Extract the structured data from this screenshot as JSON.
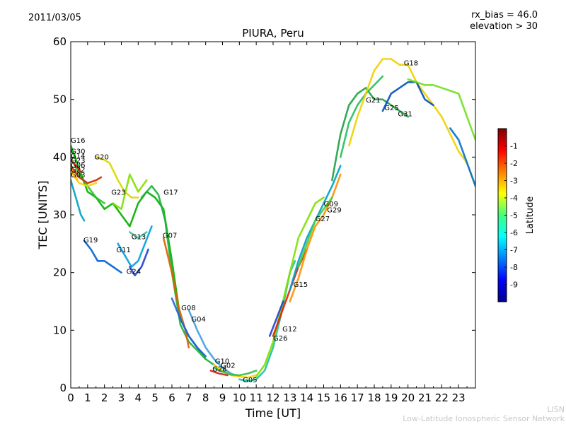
{
  "header": {
    "date": "2011/03/05",
    "rx_bias": "rx_bias = 46.0",
    "elevation": "elevation > 30",
    "title": "PIURA, Peru"
  },
  "footer": {
    "line1": "LISN",
    "line2": "Low-Latitude Ionospheric Sensor Network"
  },
  "chart_data": {
    "type": "scatter",
    "title": "PIURA, Peru",
    "xlabel": "Time [UT]",
    "ylabel": "TEC [UNITS]",
    "xlim": [
      0,
      24
    ],
    "ylim": [
      0,
      60
    ],
    "xticks": [
      "0",
      "1",
      "2",
      "3",
      "4",
      "5",
      "6",
      "7",
      "8",
      "9",
      "10",
      "11",
      "12",
      "13",
      "14",
      "15",
      "16",
      "17",
      "18",
      "19",
      "20",
      "21",
      "22",
      "23"
    ],
    "yticks": [
      "0",
      "10",
      "20",
      "30",
      "40",
      "50",
      "60"
    ],
    "colorbar": {
      "label": "Latitude",
      "range": [
        -10,
        0
      ],
      "ticks": [
        "-1",
        "-2",
        "-3",
        "-4",
        "-5",
        "-6",
        "-7",
        "-8",
        "-9"
      ]
    },
    "series": [
      {
        "name": "G16",
        "color": "#00b000",
        "points": [
          [
            0,
            42
          ],
          [
            0.5,
            38
          ],
          [
            1,
            34
          ],
          [
            1.5,
            33
          ],
          [
            2,
            31
          ],
          [
            2.5,
            32
          ],
          [
            3,
            30
          ],
          [
            3.5,
            28
          ],
          [
            4,
            32
          ],
          [
            4.5,
            34
          ],
          [
            5,
            33
          ],
          [
            5.5,
            31
          ],
          [
            6,
            22
          ],
          [
            6.5,
            12
          ],
          [
            7,
            9
          ],
          [
            7.5,
            7
          ],
          [
            8,
            5
          ]
        ]
      },
      {
        "name": "G30",
        "color": "#30c030",
        "points": [
          [
            0,
            40
          ],
          [
            0.5,
            37
          ],
          [
            1,
            35
          ],
          [
            1.5,
            33
          ],
          [
            2,
            32
          ]
        ]
      },
      {
        "name": "G14",
        "color": "#ff2020",
        "points": [
          [
            0,
            39.5
          ],
          [
            0.3,
            38.5
          ],
          [
            0.6,
            37.5
          ]
        ]
      },
      {
        "name": "G23",
        "color": "#c83000",
        "points": [
          [
            0,
            38.5
          ],
          [
            0.5,
            36.5
          ],
          [
            1,
            35.5
          ],
          [
            1.5,
            36
          ],
          [
            1.8,
            36.5
          ]
        ]
      },
      {
        "name": "G06",
        "color": "#ff9000",
        "points": [
          [
            0,
            38
          ],
          [
            0.4,
            36
          ]
        ]
      },
      {
        "name": "G22",
        "color": "#ffd000",
        "points": [
          [
            0,
            37.5
          ],
          [
            0.5,
            35.5
          ],
          [
            1,
            35
          ],
          [
            1.5,
            35.5
          ]
        ]
      },
      {
        "name": "G03",
        "color": "#00a0c8",
        "points": [
          [
            0,
            36
          ],
          [
            0.3,
            33
          ],
          [
            0.6,
            30
          ],
          [
            0.8,
            29
          ]
        ]
      },
      {
        "name": "G20",
        "color": "#d8d800",
        "points": [
          [
            1.5,
            40
          ],
          [
            2,
            39.5
          ],
          [
            2.3,
            39
          ],
          [
            2.8,
            36
          ],
          [
            3.2,
            34
          ],
          [
            3.6,
            33
          ],
          [
            4,
            33
          ]
        ]
      },
      {
        "name": "G23",
        "color": "#80e000",
        "points": [
          [
            2.5,
            32
          ],
          [
            3,
            31
          ],
          [
            3.5,
            37
          ],
          [
            4,
            34
          ],
          [
            4.5,
            36
          ]
        ]
      },
      {
        "name": "G17",
        "color": "#20b040",
        "points": [
          [
            4.2,
            33
          ],
          [
            4.8,
            35
          ],
          [
            5.2,
            33.5
          ],
          [
            5.6,
            29
          ],
          [
            6,
            20
          ],
          [
            6.5,
            11
          ],
          [
            7,
            8
          ],
          [
            7.5,
            6.5
          ],
          [
            8,
            5
          ],
          [
            8.5,
            4
          ]
        ]
      },
      {
        "name": "G19",
        "color": "#0060d0",
        "points": [
          [
            0.8,
            25.5
          ],
          [
            1.2,
            24
          ],
          [
            1.6,
            22
          ],
          [
            2,
            22
          ],
          [
            2.5,
            21
          ],
          [
            3,
            20
          ]
        ]
      },
      {
        "name": "G11",
        "color": "#00a0d8",
        "points": [
          [
            2.8,
            25
          ],
          [
            3.2,
            23
          ],
          [
            3.6,
            21
          ],
          [
            4,
            22
          ],
          [
            4.4,
            25
          ],
          [
            4.8,
            28
          ]
        ]
      },
      {
        "name": "G13",
        "color": "#40c0a0",
        "points": [
          [
            3.5,
            27
          ],
          [
            4,
            26
          ],
          [
            4.5,
            27
          ]
        ]
      },
      {
        "name": "G24",
        "color": "#2040d0",
        "points": [
          [
            3.5,
            21
          ],
          [
            3.8,
            19.5
          ],
          [
            4.2,
            21
          ],
          [
            4.6,
            24
          ]
        ]
      },
      {
        "name": "G07",
        "color": "#e06000",
        "points": [
          [
            5.5,
            26
          ],
          [
            6,
            20
          ],
          [
            6.4,
            14
          ],
          [
            6.8,
            10
          ],
          [
            7,
            7
          ]
        ]
      },
      {
        "name": "G08",
        "color": "#2060e0",
        "points": [
          [
            6,
            15.5
          ],
          [
            6.5,
            12
          ],
          [
            7,
            9
          ],
          [
            7.5,
            7
          ],
          [
            8,
            5.5
          ]
        ]
      },
      {
        "name": "G04",
        "color": "#40a0e0",
        "points": [
          [
            7,
            13.5
          ],
          [
            7.5,
            10
          ],
          [
            8,
            7
          ],
          [
            8.5,
            5
          ],
          [
            9,
            3.5
          ],
          [
            9.5,
            2.5
          ],
          [
            10,
            2
          ]
        ]
      },
      {
        "name": "G10",
        "color": "#ffd000",
        "points": [
          [
            8.5,
            4
          ],
          [
            9,
            3
          ],
          [
            9.5,
            2.2
          ],
          [
            10,
            2
          ],
          [
            10.5,
            1.8
          ],
          [
            11,
            2.2
          ]
        ]
      },
      {
        "name": "G02",
        "color": "#30c050",
        "points": [
          [
            8.5,
            3.5
          ],
          [
            9,
            2.8
          ],
          [
            9.5,
            2.3
          ],
          [
            10,
            2.2
          ],
          [
            10.5,
            2.5
          ],
          [
            11,
            3
          ]
        ]
      },
      {
        "name": "G28",
        "color": "#d02020",
        "points": [
          [
            8.3,
            3
          ],
          [
            8.8,
            2.5
          ],
          [
            9.3,
            2.2
          ]
        ]
      },
      {
        "name": "G05",
        "color": "#20c0a0",
        "points": [
          [
            10,
            1.5
          ],
          [
            10.5,
            1.2
          ],
          [
            11,
            1.5
          ],
          [
            11.5,
            3
          ],
          [
            12,
            7
          ],
          [
            12.5,
            13
          ],
          [
            13,
            20
          ],
          [
            13.3,
            22
          ]
        ]
      },
      {
        "name": "G15",
        "color": "#80e000",
        "points": [
          [
            11,
            2
          ],
          [
            11.5,
            4
          ],
          [
            12,
            8
          ],
          [
            12.5,
            14
          ],
          [
            13,
            20
          ],
          [
            13.5,
            26
          ],
          [
            14,
            29
          ],
          [
            14.5,
            32
          ],
          [
            15,
            33
          ]
        ]
      },
      {
        "name": "G12",
        "color": "#e02000",
        "points": [
          [
            12,
            9
          ],
          [
            12.5,
            13
          ],
          [
            13,
            17
          ],
          [
            13.5,
            21
          ],
          [
            14,
            24
          ]
        ]
      },
      {
        "name": "G26",
        "color": "#2040d0",
        "points": [
          [
            11.8,
            9
          ],
          [
            12.2,
            12
          ],
          [
            12.6,
            15
          ]
        ]
      },
      {
        "name": "G09",
        "color": "#00a0c8",
        "points": [
          [
            13,
            17
          ],
          [
            13.5,
            22
          ],
          [
            14,
            26
          ],
          [
            14.5,
            29
          ],
          [
            15,
            32
          ],
          [
            15.5,
            35
          ],
          [
            16,
            38.5
          ]
        ]
      },
      {
        "name": "G29",
        "color": "#ff9000",
        "points": [
          [
            13,
            15
          ],
          [
            13.5,
            19
          ],
          [
            14,
            24
          ],
          [
            14.5,
            28
          ],
          [
            15,
            30
          ],
          [
            15.5,
            33
          ],
          [
            16,
            37
          ]
        ]
      },
      {
        "name": "G27",
        "color": "#40d040",
        "points": [
          [
            13.5,
            21
          ],
          [
            14,
            25
          ],
          [
            14.5,
            29
          ],
          [
            15,
            31
          ],
          [
            15.5,
            33
          ]
        ]
      },
      {
        "name": "G21",
        "color": "#20a040",
        "points": [
          [
            15.5,
            36
          ],
          [
            16,
            44
          ],
          [
            16.5,
            49
          ],
          [
            17,
            51
          ],
          [
            17.5,
            52
          ],
          [
            18,
            50
          ],
          [
            18.5,
            50
          ],
          [
            19,
            49
          ],
          [
            19.5,
            48
          ],
          [
            20,
            47
          ]
        ]
      },
      {
        "name": "G25",
        "color": "#20c060",
        "points": [
          [
            16,
            40
          ],
          [
            16.5,
            46
          ],
          [
            17,
            49
          ],
          [
            17.5,
            51
          ],
          [
            18,
            52.5
          ],
          [
            18.5,
            54
          ]
        ]
      },
      {
        "name": "G18",
        "color": "#f0d000",
        "points": [
          [
            16.5,
            42
          ],
          [
            17,
            47
          ],
          [
            17.5,
            51
          ],
          [
            18,
            55
          ],
          [
            18.5,
            57
          ],
          [
            19,
            57
          ],
          [
            19.5,
            56
          ],
          [
            20,
            56
          ],
          [
            20.5,
            53
          ],
          [
            21,
            51
          ],
          [
            21.5,
            49
          ],
          [
            22,
            47
          ],
          [
            22.5,
            44
          ],
          [
            23,
            41
          ],
          [
            23.5,
            39
          ],
          [
            24,
            35
          ]
        ]
      },
      {
        "name": "G31",
        "color": "#0050c0",
        "points": [
          [
            18.5,
            48
          ],
          [
            19,
            51
          ],
          [
            19.5,
            52
          ],
          [
            20,
            53
          ],
          [
            20.5,
            53
          ],
          [
            21,
            50
          ],
          [
            21.5,
            49
          ]
        ]
      },
      {
        "name": "G25",
        "color": "#70e020",
        "points": [
          [
            20,
            53.5
          ],
          [
            20.5,
            53
          ],
          [
            21,
            52.5
          ],
          [
            21.5,
            52.5
          ],
          [
            22,
            52
          ],
          [
            22.5,
            51.5
          ],
          [
            23,
            51
          ],
          [
            23.5,
            47
          ],
          [
            24,
            43
          ]
        ]
      },
      {
        "name": "G21",
        "color": "#0070d0",
        "points": [
          [
            22.5,
            45
          ],
          [
            23,
            43
          ],
          [
            23.5,
            39
          ],
          [
            24,
            35
          ]
        ]
      }
    ],
    "labels": [
      {
        "text": "G16",
        "x": 0,
        "y": 42.5
      },
      {
        "text": "G30",
        "x": 0,
        "y": 40.6
      },
      {
        "text": "G14",
        "x": 0,
        "y": 39.8
      },
      {
        "text": "G23",
        "x": 0,
        "y": 39.0
      },
      {
        "text": "G06",
        "x": 0,
        "y": 38.2
      },
      {
        "text": "G22",
        "x": 0,
        "y": 37.4
      },
      {
        "text": "G03",
        "x": 0,
        "y": 36.5
      },
      {
        "text": "G20",
        "x": 1.4,
        "y": 39.6
      },
      {
        "text": "G23",
        "x": 2.4,
        "y": 33.5
      },
      {
        "text": "G17",
        "x": 5.5,
        "y": 33.5
      },
      {
        "text": "G19",
        "x": 0.75,
        "y": 25.2
      },
      {
        "text": "G11",
        "x": 2.7,
        "y": 23.5
      },
      {
        "text": "G13",
        "x": 3.6,
        "y": 25.8
      },
      {
        "text": "G07",
        "x": 5.45,
        "y": 26.0
      },
      {
        "text": "G24",
        "x": 3.3,
        "y": 19.8
      },
      {
        "text": "G08",
        "x": 6.55,
        "y": 13.5
      },
      {
        "text": "G04",
        "x": 7.15,
        "y": 11.5
      },
      {
        "text": "G10",
        "x": 8.55,
        "y": 4.2
      },
      {
        "text": "G02",
        "x": 8.9,
        "y": 3.5
      },
      {
        "text": "G28",
        "x": 8.4,
        "y": 2.9
      },
      {
        "text": "G05",
        "x": 10.2,
        "y": 1.0
      },
      {
        "text": "G15",
        "x": 13.2,
        "y": 17.5
      },
      {
        "text": "G12",
        "x": 12.55,
        "y": 9.8
      },
      {
        "text": "G26",
        "x": 12.0,
        "y": 8.2
      },
      {
        "text": "G09",
        "x": 15.0,
        "y": 31.5
      },
      {
        "text": "G29",
        "x": 15.2,
        "y": 30.4
      },
      {
        "text": "G27",
        "x": 14.5,
        "y": 28.9
      },
      {
        "text": "G21",
        "x": 17.5,
        "y": 49.5
      },
      {
        "text": "G25",
        "x": 18.6,
        "y": 48.1
      },
      {
        "text": "G31",
        "x": 19.4,
        "y": 47.1
      },
      {
        "text": "G18",
        "x": 19.75,
        "y": 55.9
      }
    ]
  }
}
